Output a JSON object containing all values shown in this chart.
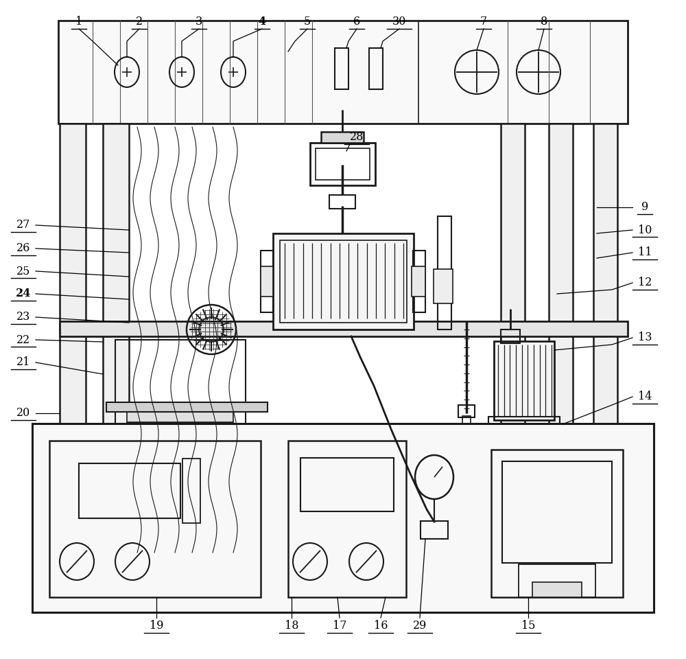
{
  "fig_width": 10.0,
  "fig_height": 9.6,
  "dpi": 100,
  "bg": "#ffffff",
  "lc": "#1a1a1a",
  "lw": 1.2
}
